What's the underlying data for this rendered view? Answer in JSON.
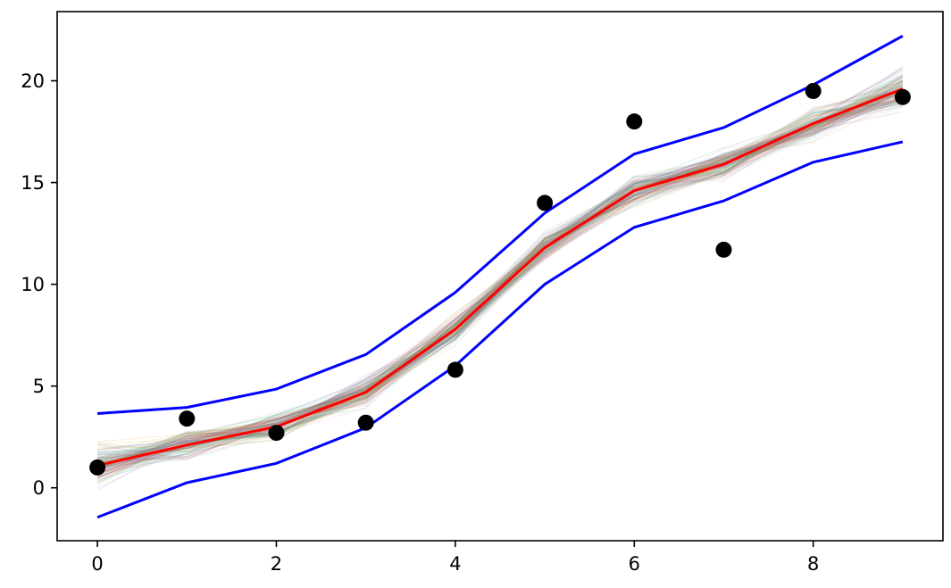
{
  "chart_data": {
    "type": "line",
    "title": "",
    "xlabel": "",
    "ylabel": "",
    "xlim": [
      -0.45,
      9.45
    ],
    "ylim": [
      -2.6,
      23.4
    ],
    "grid": false,
    "x_ticks": [
      0,
      2,
      4,
      6,
      8
    ],
    "y_ticks": [
      0,
      5,
      10,
      15,
      20
    ],
    "x": [
      0,
      1,
      2,
      3,
      4,
      5,
      6,
      7,
      8,
      9
    ],
    "observed_points": [
      1.0,
      3.4,
      2.7,
      3.2,
      5.8,
      14.0,
      18.0,
      11.7,
      19.5,
      19.2
    ],
    "mean_line": [
      1.1,
      2.1,
      3.0,
      4.7,
      7.8,
      11.8,
      14.6,
      15.9,
      17.9,
      19.6
    ],
    "upper_band": [
      3.65,
      3.95,
      4.85,
      6.55,
      9.6,
      13.5,
      16.4,
      17.7,
      19.8,
      22.2
    ],
    "lower_band": [
      -1.45,
      0.25,
      1.2,
      2.95,
      6.0,
      10.0,
      12.8,
      14.1,
      16.0,
      17.0
    ],
    "sample_count": 120,
    "colors": {
      "observed": "#000000",
      "mean": "#ff0000",
      "band": "#0000ff",
      "samples": [
        "#1f77b4",
        "#ff7f0e",
        "#2ca02c",
        "#d62728",
        "#9467bd",
        "#8c564b",
        "#e377c2",
        "#7f7f7f",
        "#bcbd22",
        "#17becf"
      ]
    }
  }
}
